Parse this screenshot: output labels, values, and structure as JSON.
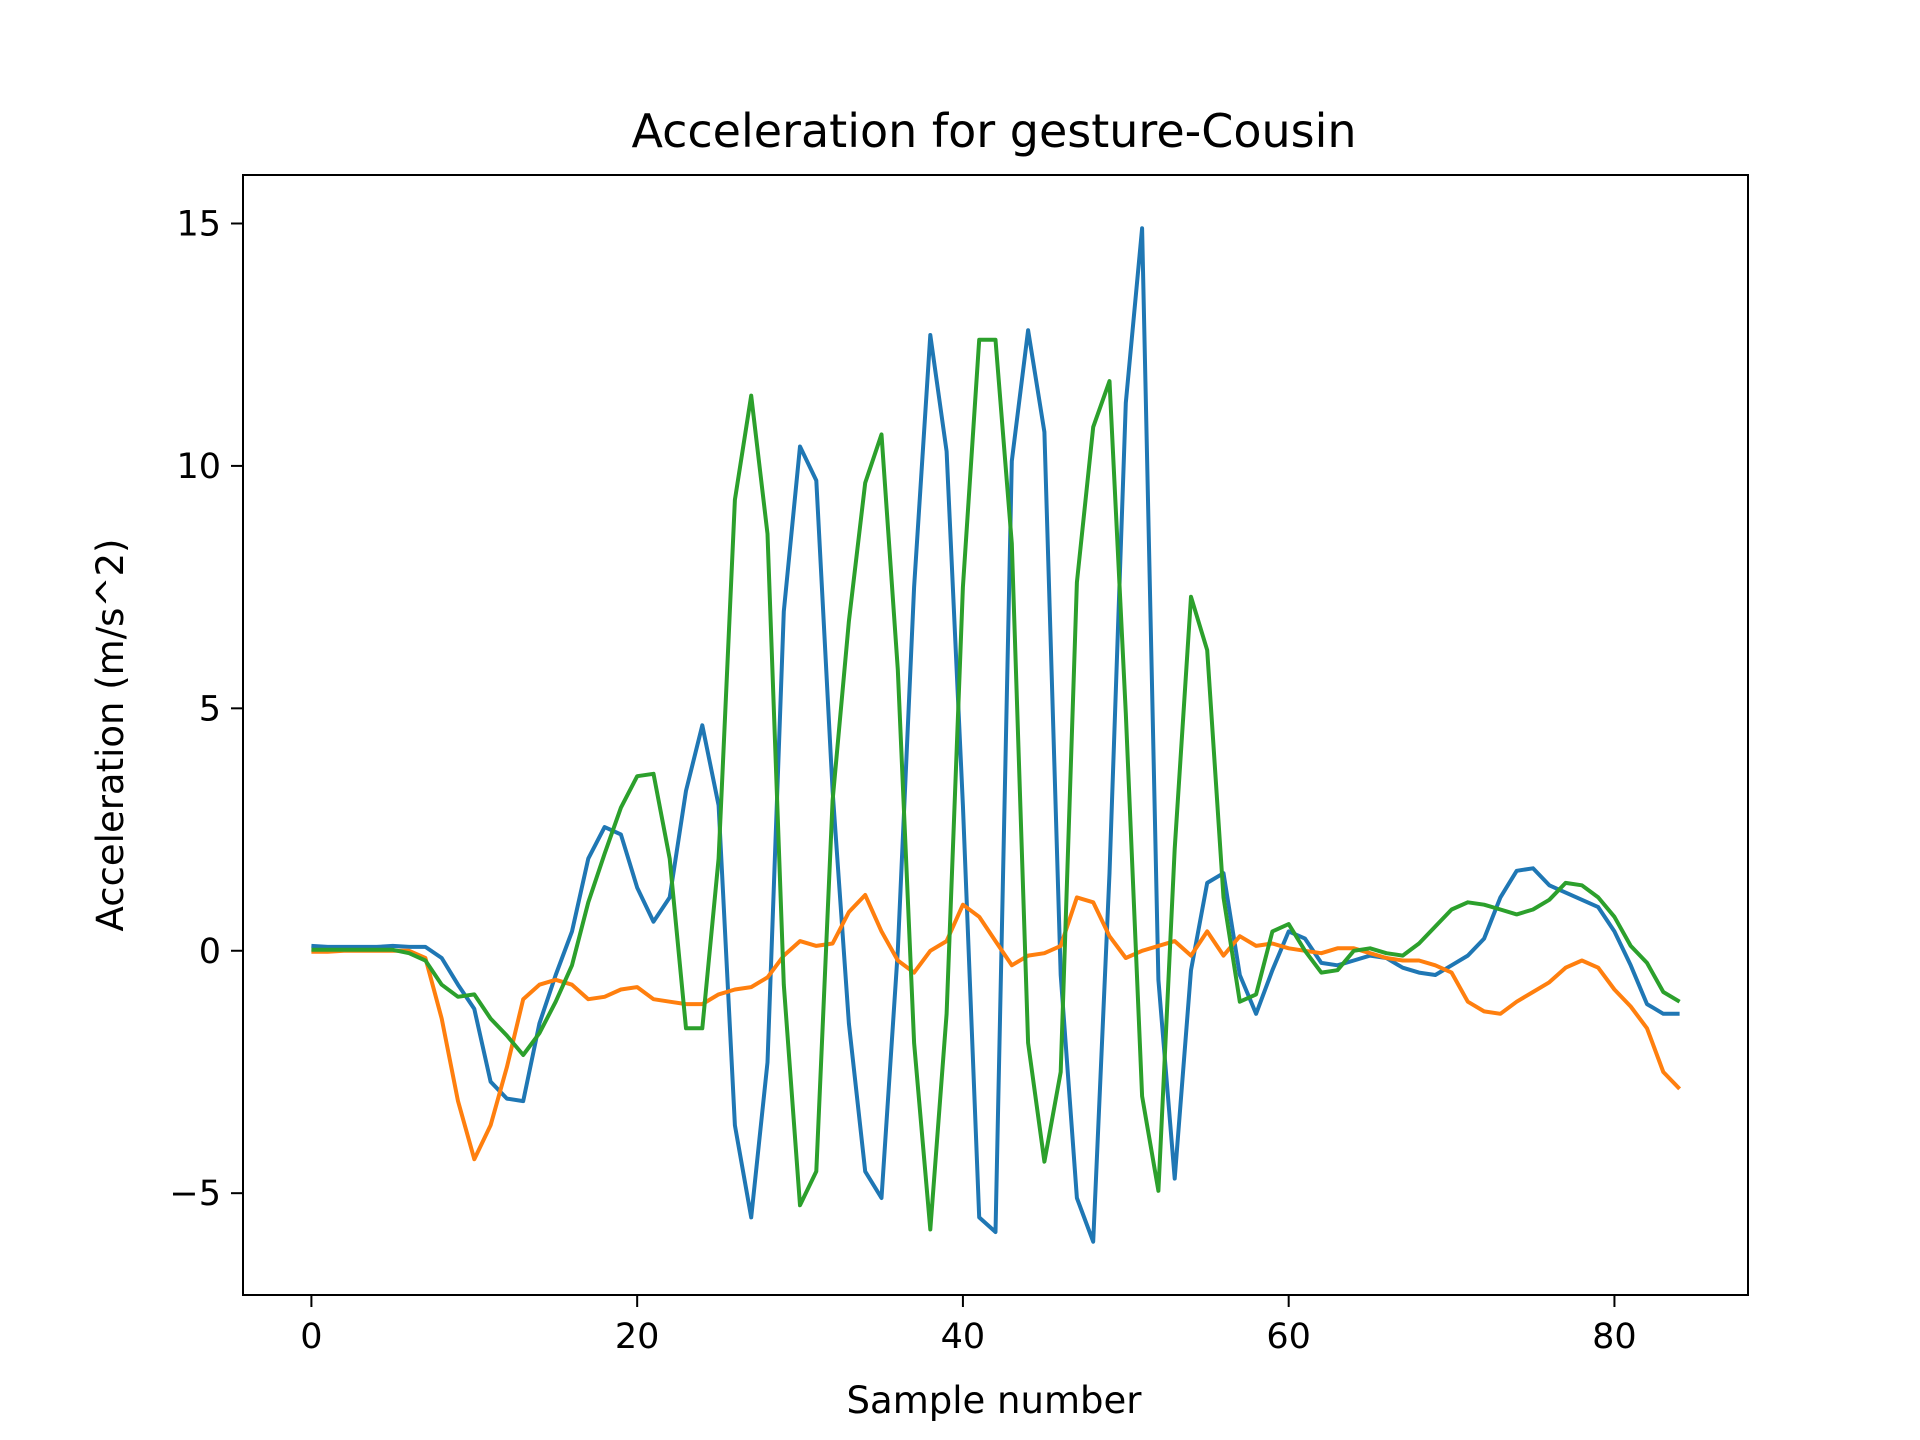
{
  "chart_data": {
    "type": "line",
    "title": "Acceleration for gesture-Cousin",
    "xlabel": "Sample number",
    "ylabel": "Acceleration (m/s^2)",
    "xlim": [
      -4.2,
      88.2
    ],
    "ylim": [
      -7.1,
      16.0
    ],
    "x_ticks": [
      0,
      20,
      40,
      60,
      80
    ],
    "x_tick_labels": [
      "0",
      "20",
      "40",
      "60",
      "80"
    ],
    "y_ticks": [
      -5,
      0,
      5,
      10,
      15
    ],
    "y_tick_labels": [
      "−5",
      "0",
      "5",
      "10",
      "15"
    ],
    "grid": false,
    "legend": "none",
    "x": [
      0,
      1,
      2,
      3,
      4,
      5,
      6,
      7,
      8,
      9,
      10,
      11,
      12,
      13,
      14,
      15,
      16,
      17,
      18,
      19,
      20,
      21,
      22,
      23,
      24,
      25,
      26,
      27,
      28,
      29,
      30,
      31,
      32,
      33,
      34,
      35,
      36,
      37,
      38,
      39,
      40,
      41,
      42,
      43,
      44,
      45,
      46,
      47,
      48,
      49,
      50,
      51,
      52,
      53,
      54,
      55,
      56,
      57,
      58,
      59,
      60,
      61,
      62,
      63,
      64,
      65,
      66,
      67,
      68,
      69,
      70,
      71,
      72,
      73,
      74,
      75,
      76,
      77,
      78,
      79,
      80,
      81,
      82,
      83,
      84
    ],
    "series": [
      {
        "color": "#1f77b4",
        "values": [
          0.1,
          0.08,
          0.08,
          0.08,
          0.08,
          0.1,
          0.08,
          0.08,
          -0.15,
          -0.7,
          -1.2,
          -2.7,
          -3.05,
          -3.1,
          -1.5,
          -0.5,
          0.4,
          1.9,
          2.55,
          2.4,
          1.3,
          0.6,
          1.1,
          3.3,
          4.65,
          3.0,
          -3.6,
          -5.5,
          -2.3,
          7.0,
          10.4,
          9.7,
          3.3,
          -1.5,
          -4.55,
          -5.1,
          0.0,
          7.5,
          12.7,
          10.3,
          3.0,
          -5.5,
          -5.8,
          10.1,
          12.8,
          10.7,
          -0.5,
          -5.1,
          -6.0,
          1.6,
          11.3,
          14.9,
          -0.6,
          -4.7,
          -0.4,
          1.4,
          1.6,
          -0.5,
          -1.3,
          -0.4,
          0.4,
          0.25,
          -0.25,
          -0.3,
          -0.2,
          -0.1,
          -0.15,
          -0.35,
          -0.45,
          -0.5,
          -0.3,
          -0.1,
          0.25,
          1.1,
          1.65,
          1.7,
          1.35,
          1.2,
          1.05,
          0.9,
          0.4,
          -0.3,
          -1.1,
          -1.3,
          -1.3
        ]
      },
      {
        "color": "#ff7f0e",
        "values": [
          -0.02,
          -0.02,
          0.0,
          0.0,
          0.0,
          0.0,
          0.0,
          -0.15,
          -1.4,
          -3.1,
          -4.3,
          -3.6,
          -2.4,
          -1.0,
          -0.7,
          -0.6,
          -0.7,
          -1.0,
          -0.95,
          -0.8,
          -0.75,
          -1.0,
          -1.05,
          -1.1,
          -1.1,
          -0.9,
          -0.8,
          -0.75,
          -0.55,
          -0.1,
          0.2,
          0.1,
          0.15,
          0.8,
          1.15,
          0.4,
          -0.2,
          -0.45,
          0.0,
          0.2,
          0.95,
          0.7,
          0.2,
          -0.3,
          -0.1,
          -0.05,
          0.1,
          1.1,
          1.0,
          0.3,
          -0.15,
          0.0,
          0.1,
          0.2,
          -0.1,
          0.4,
          -0.1,
          0.3,
          0.1,
          0.15,
          0.05,
          0.0,
          -0.05,
          0.05,
          0.05,
          -0.05,
          -0.15,
          -0.2,
          -0.2,
          -0.3,
          -0.45,
          -1.05,
          -1.25,
          -1.3,
          -1.05,
          -0.85,
          -0.65,
          -0.35,
          -0.2,
          -0.35,
          -0.8,
          -1.15,
          -1.6,
          -2.5,
          -2.85
        ]
      },
      {
        "color": "#2ca02c",
        "values": [
          0.02,
          0.02,
          0.02,
          0.02,
          0.02,
          0.02,
          -0.05,
          -0.2,
          -0.7,
          -0.95,
          -0.9,
          -1.4,
          -1.75,
          -2.15,
          -1.7,
          -1.05,
          -0.3,
          1.0,
          2.0,
          2.95,
          3.6,
          3.65,
          1.9,
          -1.6,
          -1.6,
          1.9,
          9.3,
          11.45,
          8.6,
          -0.7,
          -5.25,
          -4.55,
          3.1,
          6.8,
          9.65,
          10.65,
          5.8,
          -1.9,
          -5.75,
          -1.3,
          7.5,
          12.6,
          12.6,
          8.4,
          -1.9,
          -4.35,
          -2.5,
          7.6,
          10.8,
          11.75,
          4.9,
          -3.0,
          -4.95,
          2.1,
          7.3,
          6.2,
          1.1,
          -1.05,
          -0.9,
          0.4,
          0.55,
          0.0,
          -0.45,
          -0.4,
          0.0,
          0.05,
          -0.05,
          -0.1,
          0.15,
          0.5,
          0.85,
          1.0,
          0.95,
          0.85,
          0.75,
          0.85,
          1.05,
          1.4,
          1.35,
          1.1,
          0.7,
          0.1,
          -0.25,
          -0.85,
          -1.05
        ]
      }
    ]
  }
}
